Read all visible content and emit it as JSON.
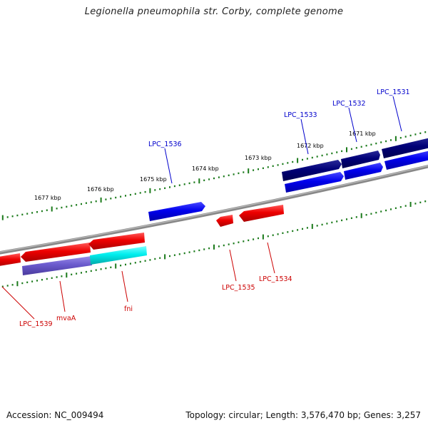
{
  "title": "Legionella pneumophila str. Corby, complete genome",
  "footer": {
    "accession": "Accession: NC_009494",
    "topology": "Topology: circular; Length: 3,576,470 bp; Genes: 3,257"
  },
  "colors": {
    "backbone": "#8a8a8a",
    "tick": "#1b7a1b",
    "forward_gene": "#0000ee",
    "forward_gene_dark": "#000077",
    "reverse_gene": "#ee0000",
    "reverse_gene_light": "#00eeee",
    "reverse_gene_purple": "#6a5acd",
    "forward_label": "#0000cc",
    "reverse_label": "#cc0000"
  },
  "scale_labels": [
    "1677 kbp",
    "1676 kbp",
    "1675 kbp",
    "1674 kbp",
    "1673 kbp",
    "1672 kbp",
    "1671 kbp"
  ],
  "genes": {
    "forward": [
      "LPC_1536",
      "LPC_1533",
      "LPC_1532",
      "LPC_1531"
    ],
    "reverse": [
      "LPC_1539",
      "mvaA",
      "fni",
      "LPC_1535",
      "LPC_1534"
    ]
  }
}
